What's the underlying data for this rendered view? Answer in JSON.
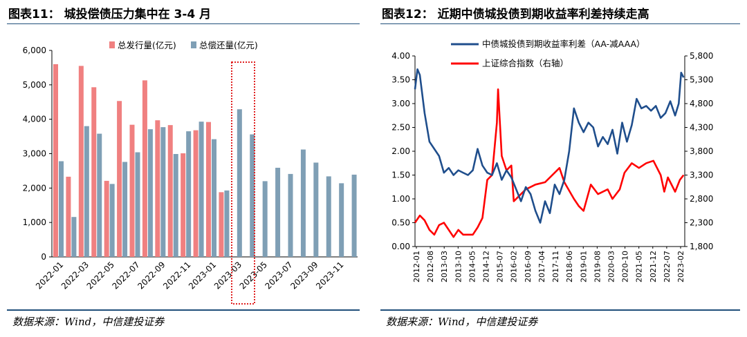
{
  "left": {
    "title": "图表11：  城投偿债压力集中在 3-4 月",
    "source": "数据来源：Wind，中信建投证券",
    "chart_data": {
      "type": "bar",
      "categories": [
        "2022-01",
        "2022-02",
        "2022-03",
        "2022-04",
        "2022-05",
        "2022-06",
        "2022-07",
        "2022-08",
        "2022-09",
        "2022-10",
        "2022-11",
        "2022-12",
        "2023-01",
        "2023-02",
        "2023-03",
        "2023-04",
        "2023-05",
        "2023-06",
        "2023-07",
        "2023-08",
        "2023-09",
        "2023-10",
        "2023-11",
        "2023-12"
      ],
      "tick_labels": [
        "2022-01",
        "2022-03",
        "2022-05",
        "2022-07",
        "2022-09",
        "2022-11",
        "2023-01",
        "2023-03",
        "2023-05",
        "2023-07",
        "2023-09",
        "2023-11"
      ],
      "series": [
        {
          "name": "总发行量(亿元)",
          "color": "#f08080",
          "values": [
            5600,
            2330,
            5550,
            4930,
            2210,
            4530,
            3840,
            5130,
            3970,
            3830,
            3010,
            3680,
            3920,
            1880,
            null,
            null,
            null,
            null,
            null,
            null,
            null,
            null,
            null,
            null
          ]
        },
        {
          "name": "总偿还量(亿元)",
          "color": "#7f9fb5",
          "values": [
            2780,
            1160,
            3800,
            3580,
            2120,
            2760,
            3040,
            3710,
            3770,
            2990,
            3650,
            3930,
            3420,
            1930,
            4290,
            3560,
            2200,
            2590,
            2410,
            3120,
            2740,
            2340,
            2140,
            2390
          ]
        }
      ],
      "ylim": [
        0,
        6000
      ],
      "yticks": [
        "0",
        "1,000",
        "2,000",
        "3,000",
        "4,000",
        "5,000",
        "6,000"
      ],
      "annotation": "dotted box around 2023-03 to 2023-04"
    }
  },
  "right": {
    "title": "图表12：  近期中债城投债到期收益率利差持续走高",
    "source": "数据来源：Wind，中信建投证券",
    "chart_data": {
      "type": "line",
      "series": [
        {
          "name": "中债城投债到期收益率利差（AA-减AAA）",
          "color": "#1f4e8c",
          "axis": "left",
          "points": [
            [
              2012.0,
              3.3
            ],
            [
              2012.1,
              3.72
            ],
            [
              2012.2,
              3.6
            ],
            [
              2012.4,
              2.8
            ],
            [
              2012.6,
              2.2
            ],
            [
              2012.8,
              2.05
            ],
            [
              2013.0,
              1.9
            ],
            [
              2013.2,
              1.55
            ],
            [
              2013.4,
              1.65
            ],
            [
              2013.6,
              1.5
            ],
            [
              2013.8,
              1.6
            ],
            [
              2014.0,
              1.55
            ],
            [
              2014.2,
              1.5
            ],
            [
              2014.4,
              1.6
            ],
            [
              2014.6,
              2.05
            ],
            [
              2014.8,
              1.7
            ],
            [
              2015.0,
              1.55
            ],
            [
              2015.2,
              1.5
            ],
            [
              2015.4,
              1.75
            ],
            [
              2015.6,
              1.4
            ],
            [
              2015.8,
              1.6
            ],
            [
              2016.0,
              1.45
            ],
            [
              2016.2,
              1.2
            ],
            [
              2016.4,
              0.95
            ],
            [
              2016.6,
              1.25
            ],
            [
              2016.8,
              1.1
            ],
            [
              2017.0,
              0.75
            ],
            [
              2017.2,
              0.5
            ],
            [
              2017.4,
              0.95
            ],
            [
              2017.6,
              0.7
            ],
            [
              2017.8,
              1.3
            ],
            [
              2018.0,
              1.1
            ],
            [
              2018.2,
              1.4
            ],
            [
              2018.4,
              2.0
            ],
            [
              2018.6,
              2.9
            ],
            [
              2018.8,
              2.6
            ],
            [
              2019.0,
              2.4
            ],
            [
              2019.2,
              2.6
            ],
            [
              2019.4,
              2.5
            ],
            [
              2019.6,
              2.1
            ],
            [
              2019.8,
              2.3
            ],
            [
              2020.0,
              2.15
            ],
            [
              2020.2,
              2.45
            ],
            [
              2020.4,
              1.95
            ],
            [
              2020.6,
              2.6
            ],
            [
              2020.8,
              2.2
            ],
            [
              2021.0,
              2.55
            ],
            [
              2021.2,
              3.1
            ],
            [
              2021.4,
              2.9
            ],
            [
              2021.6,
              2.95
            ],
            [
              2021.8,
              2.85
            ],
            [
              2022.0,
              2.95
            ],
            [
              2022.2,
              2.7
            ],
            [
              2022.4,
              2.8
            ],
            [
              2022.6,
              3.05
            ],
            [
              2022.8,
              2.75
            ],
            [
              2022.95,
              3.0
            ],
            [
              2023.05,
              3.65
            ],
            [
              2023.15,
              3.55
            ]
          ]
        },
        {
          "name": "上证综合指数（右轴）",
          "color": "#ff0000",
          "axis": "right",
          "points": [
            [
              2012.0,
              2300
            ],
            [
              2012.2,
              2450
            ],
            [
              2012.4,
              2350
            ],
            [
              2012.6,
              2150
            ],
            [
              2012.8,
              2050
            ],
            [
              2013.0,
              2250
            ],
            [
              2013.2,
              2300
            ],
            [
              2013.4,
              2150
            ],
            [
              2013.6,
              2000
            ],
            [
              2013.8,
              2150
            ],
            [
              2014.0,
              2050
            ],
            [
              2014.2,
              2050
            ],
            [
              2014.4,
              2050
            ],
            [
              2014.6,
              2200
            ],
            [
              2014.8,
              2400
            ],
            [
              2015.0,
              3200
            ],
            [
              2015.2,
              3300
            ],
            [
              2015.4,
              4400
            ],
            [
              2015.45,
              5100
            ],
            [
              2015.6,
              3700
            ],
            [
              2015.8,
              3400
            ],
            [
              2016.0,
              3500
            ],
            [
              2016.1,
              2750
            ],
            [
              2016.4,
              2900
            ],
            [
              2016.6,
              3000
            ],
            [
              2016.8,
              3050
            ],
            [
              2017.0,
              3100
            ],
            [
              2017.4,
              3150
            ],
            [
              2017.8,
              3350
            ],
            [
              2018.0,
              3450
            ],
            [
              2018.2,
              3150
            ],
            [
              2018.6,
              2800
            ],
            [
              2018.8,
              2650
            ],
            [
              2019.0,
              2550
            ],
            [
              2019.3,
              3100
            ],
            [
              2019.6,
              2900
            ],
            [
              2020.0,
              3000
            ],
            [
              2020.2,
              2800
            ],
            [
              2020.5,
              3000
            ],
            [
              2020.7,
              3350
            ],
            [
              2021.0,
              3550
            ],
            [
              2021.3,
              3450
            ],
            [
              2021.6,
              3550
            ],
            [
              2021.9,
              3600
            ],
            [
              2022.2,
              3300
            ],
            [
              2022.35,
              2950
            ],
            [
              2022.5,
              3250
            ],
            [
              2022.8,
              2950
            ],
            [
              2023.0,
              3200
            ],
            [
              2023.15,
              3300
            ]
          ]
        }
      ],
      "x_tick_labels": [
        "2012-01",
        "2012-08",
        "2013-03",
        "2013-10",
        "2014-05",
        "2014-12",
        "2015-07",
        "2016-02",
        "2016-09",
        "2017-04",
        "2017-11",
        "2018-06",
        "2019-01",
        "2019-08",
        "2020-03",
        "2020-10",
        "2021-05",
        "2021-12",
        "2022-07",
        "2023-02"
      ],
      "ylim_left": [
        0,
        4
      ],
      "yticks_left": [
        "0.00",
        "0.50",
        "1.00",
        "1.50",
        "2.00",
        "2.50",
        "3.00",
        "3.50",
        "4.00"
      ],
      "ylim_right": [
        1800,
        5800
      ],
      "yticks_right": [
        "1,800",
        "2,300",
        "2,800",
        "3,300",
        "3,800",
        "4,300",
        "4,800",
        "5,300",
        "5,800"
      ]
    }
  }
}
